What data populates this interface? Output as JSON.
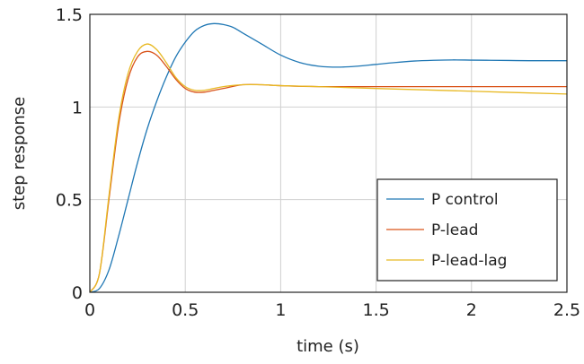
{
  "chart_data": {
    "type": "line",
    "xlabel": "time (s)",
    "ylabel": "step response",
    "xlim": [
      0,
      2.5
    ],
    "ylim": [
      0,
      1.5
    ],
    "xticks": [
      0,
      0.5,
      1,
      1.5,
      2,
      2.5
    ],
    "yticks": [
      0,
      0.5,
      1,
      1.5
    ],
    "xtick_labels": [
      "0",
      "0.5",
      "1",
      "1.5",
      "2",
      "2.5"
    ],
    "ytick_labels": [
      "0",
      "0.5",
      "1",
      "1.5"
    ],
    "grid": true,
    "legend_position": "bottom-right",
    "series": [
      {
        "name": "P control",
        "color": "#1f77b4",
        "x": [
          0,
          0.05,
          0.1,
          0.15,
          0.2,
          0.25,
          0.3,
          0.35,
          0.4,
          0.45,
          0.5,
          0.55,
          0.6,
          0.65,
          0.7,
          0.75,
          0.8,
          0.9,
          1.0,
          1.1,
          1.2,
          1.3,
          1.4,
          1.5,
          1.6,
          1.7,
          1.8,
          1.9,
          2.0,
          2.1,
          2.2,
          2.3,
          2.4,
          2.5
        ],
        "y": [
          0,
          0.02,
          0.12,
          0.3,
          0.5,
          0.7,
          0.88,
          1.03,
          1.16,
          1.27,
          1.35,
          1.41,
          1.44,
          1.45,
          1.445,
          1.43,
          1.4,
          1.34,
          1.28,
          1.24,
          1.22,
          1.215,
          1.22,
          1.23,
          1.24,
          1.248,
          1.252,
          1.254,
          1.253,
          1.252,
          1.251,
          1.25,
          1.25,
          1.25
        ]
      },
      {
        "name": "P-lead",
        "color": "#d95319",
        "x": [
          0,
          0.05,
          0.1,
          0.15,
          0.2,
          0.25,
          0.3,
          0.35,
          0.4,
          0.45,
          0.5,
          0.55,
          0.6,
          0.65,
          0.7,
          0.8,
          0.9,
          1.0,
          1.2,
          1.5,
          2.0,
          2.5
        ],
        "y": [
          0,
          0.1,
          0.5,
          0.9,
          1.15,
          1.27,
          1.3,
          1.28,
          1.22,
          1.15,
          1.1,
          1.08,
          1.08,
          1.09,
          1.1,
          1.12,
          1.12,
          1.115,
          1.11,
          1.11,
          1.11,
          1.11
        ]
      },
      {
        "name": "P-lead-lag",
        "color": "#e8b923",
        "x": [
          0,
          0.05,
          0.1,
          0.15,
          0.2,
          0.25,
          0.3,
          0.35,
          0.4,
          0.45,
          0.5,
          0.55,
          0.6,
          0.65,
          0.7,
          0.8,
          0.9,
          1.0,
          1.2,
          1.5,
          2.0,
          2.5
        ],
        "y": [
          0,
          0.1,
          0.52,
          0.93,
          1.18,
          1.3,
          1.34,
          1.31,
          1.24,
          1.16,
          1.11,
          1.09,
          1.09,
          1.1,
          1.11,
          1.12,
          1.12,
          1.115,
          1.11,
          1.1,
          1.085,
          1.07
        ]
      }
    ]
  }
}
